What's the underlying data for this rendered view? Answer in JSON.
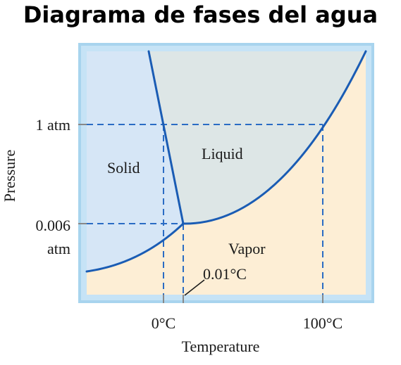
{
  "title": "Diagrama de fases del agua",
  "axes": {
    "ylabel": "Pressure",
    "xlabel": "Temperature",
    "yticks": [
      "1 atm",
      "0.006",
      "atm"
    ],
    "xticks": [
      "0°C",
      "100°C"
    ]
  },
  "regions": {
    "solid": "Solid",
    "liquid": "Liquid",
    "vapor": "Vapor"
  },
  "annotation": "0.01°C",
  "colors": {
    "solid_fill": "#d6e6f6",
    "liquid_fill": "#dde6e6",
    "vapor_fill": "#fdeed5",
    "frame": "#a8d4ee",
    "curve": "#1a5cb4",
    "dash": "#2a6cc4"
  }
}
